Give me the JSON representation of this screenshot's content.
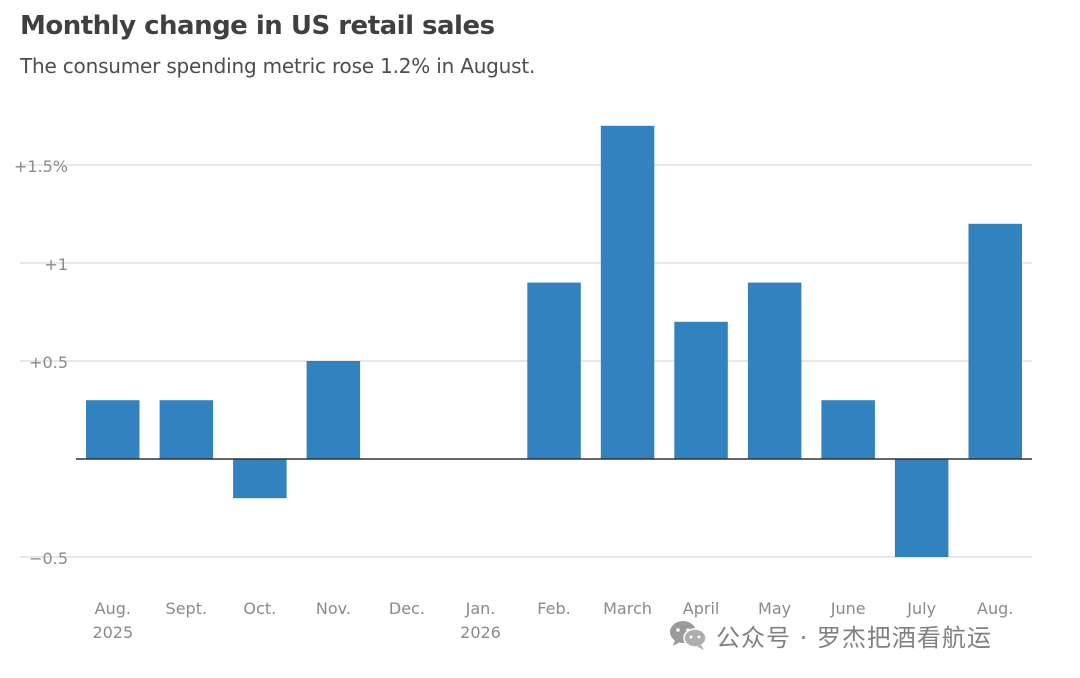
{
  "title": "Monthly change in US retail sales",
  "subtitle": "The consumer spending metric rose 1.2% in August.",
  "chart_data": {
    "type": "bar",
    "categories": [
      [
        "Aug.",
        "2025"
      ],
      [
        "Sept."
      ],
      [
        "Oct."
      ],
      [
        "Nov."
      ],
      [
        "Dec."
      ],
      [
        "Jan.",
        "2026"
      ],
      [
        "Feb."
      ],
      [
        "March"
      ],
      [
        "April"
      ],
      [
        "May"
      ],
      [
        "June"
      ],
      [
        "July"
      ],
      [
        "Aug."
      ]
    ],
    "values": [
      0.3,
      0.3,
      -0.2,
      0.5,
      0,
      0,
      0.9,
      1.7,
      0.7,
      0.9,
      0.3,
      -0.5,
      1.2
    ],
    "ylim": [
      -0.5,
      1.7
    ],
    "yticks": [
      {
        "value": 1.5,
        "label": "+1.5%"
      },
      {
        "value": 1,
        "label": "+1"
      },
      {
        "value": 0.5,
        "label": "+0.5"
      },
      {
        "value": -0.5,
        "label": "−0.5"
      }
    ],
    "bar_color": "#3182bf",
    "grid_color": "#d0d0d0",
    "zero_line_color": "#333333",
    "grid": true
  },
  "watermark": {
    "text": "公众号 · 罗杰把酒看航运",
    "icon": "wechat-icon"
  }
}
